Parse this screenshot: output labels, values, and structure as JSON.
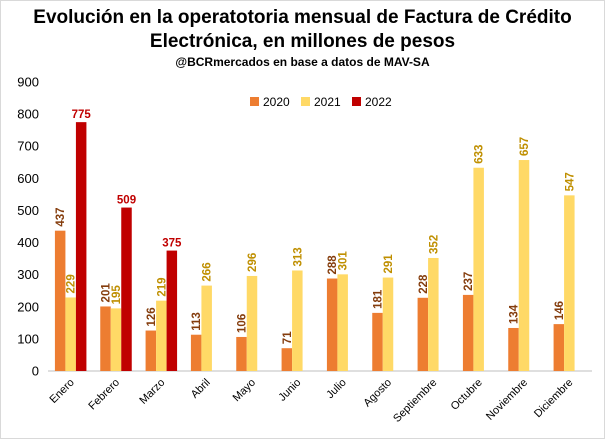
{
  "chart_data": {
    "type": "bar",
    "title": "Evolución en la operatotoria mensual de Factura de Crédito Electrónica, en millones de pesos",
    "title_lines": [
      "Evolución en la operatotoria mensual de Factura de Crédito",
      "Electrónica, en millones de pesos"
    ],
    "subtitle": "@BCRmercados  en base a datos de MAV-SA",
    "categories": [
      "Enero",
      "Febrero",
      "Marzo",
      "Abril",
      "Mayo",
      "Junio",
      "Julio",
      "Agosto",
      "Septiembre",
      "Octubre",
      "Noviembre",
      "Diciembre"
    ],
    "series": [
      {
        "name": "2020",
        "color": "#ed7d31",
        "label_color": "#843c0c",
        "values": [
          437,
          201,
          126,
          113,
          106,
          71,
          288,
          181,
          228,
          237,
          134,
          146
        ]
      },
      {
        "name": "2021",
        "color": "#ffd966",
        "label_color": "#bf8f00",
        "values": [
          229,
          195,
          219,
          266,
          296,
          313,
          301,
          291,
          352,
          633,
          657,
          547
        ]
      },
      {
        "name": "2022",
        "color": "#c00000",
        "label_color": "#c00000",
        "values": [
          775,
          509,
          375,
          null,
          null,
          null,
          null,
          null,
          null,
          null,
          null,
          null
        ]
      }
    ],
    "xlabel": "",
    "ylabel": "",
    "ylim": [
      0,
      900
    ],
    "yticks": [
      0,
      100,
      200,
      300,
      400,
      500,
      600,
      700,
      800,
      900
    ],
    "grid": false,
    "legend_position": "top-center"
  }
}
